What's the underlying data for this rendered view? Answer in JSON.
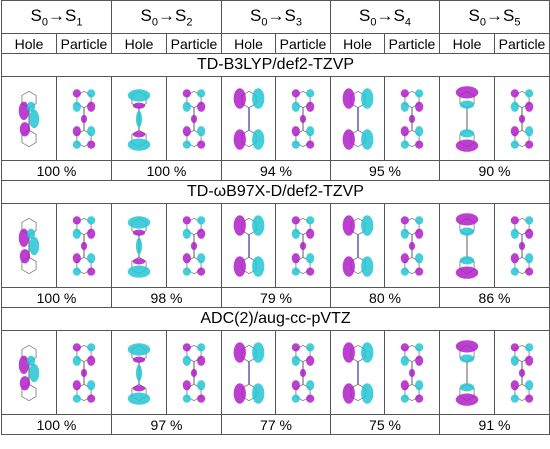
{
  "transitions": [
    {
      "from": "S",
      "from_sub": "0",
      "arrow": "→",
      "to": "S",
      "to_sub": "1"
    },
    {
      "from": "S",
      "from_sub": "0",
      "arrow": "→",
      "to": "S",
      "to_sub": "2"
    },
    {
      "from": "S",
      "from_sub": "0",
      "arrow": "→",
      "to": "S",
      "to_sub": "3"
    },
    {
      "from": "S",
      "from_sub": "0",
      "arrow": "→",
      "to": "S",
      "to_sub": "4"
    },
    {
      "from": "S",
      "from_sub": "0",
      "arrow": "→",
      "to": "S",
      "to_sub": "5"
    }
  ],
  "sub_headers": {
    "hole": "Hole",
    "particle": "Particle"
  },
  "methods": [
    {
      "name": "TD-B3LYP/def2-TZVP",
      "percentages": [
        "100 %",
        "100 %",
        "94 %",
        "95 %",
        "90 %"
      ],
      "hole_types": [
        "pi1",
        "pi2",
        "lp",
        "lp",
        "sigma"
      ],
      "particle_types": [
        "p1",
        "p1",
        "p1",
        "p1",
        "p1"
      ]
    },
    {
      "name": "TD-ωB97X-D/def2-TZVP",
      "percentages": [
        "100 %",
        "98 %",
        "79 %",
        "80 %",
        "86 %"
      ],
      "hole_types": [
        "pi1",
        "pi2",
        "lp",
        "lp",
        "sigma"
      ],
      "particle_types": [
        "p1",
        "p1",
        "p1",
        "p1",
        "p1"
      ]
    },
    {
      "name": "ADC(2)/aug-cc-pVTZ",
      "percentages": [
        "100 %",
        "97 %",
        "77 %",
        "75 %",
        "91 %"
      ],
      "hole_types": [
        "pi1",
        "pi2",
        "lp",
        "lp",
        "sigma"
      ],
      "particle_types": [
        "p1",
        "p1",
        "p1",
        "p1",
        "p1"
      ]
    }
  ],
  "colors": {
    "magenta": "#b01fc8",
    "cyan": "#22c6d2",
    "bond": "#7a7a7a",
    "link": "#3b3b9a"
  }
}
